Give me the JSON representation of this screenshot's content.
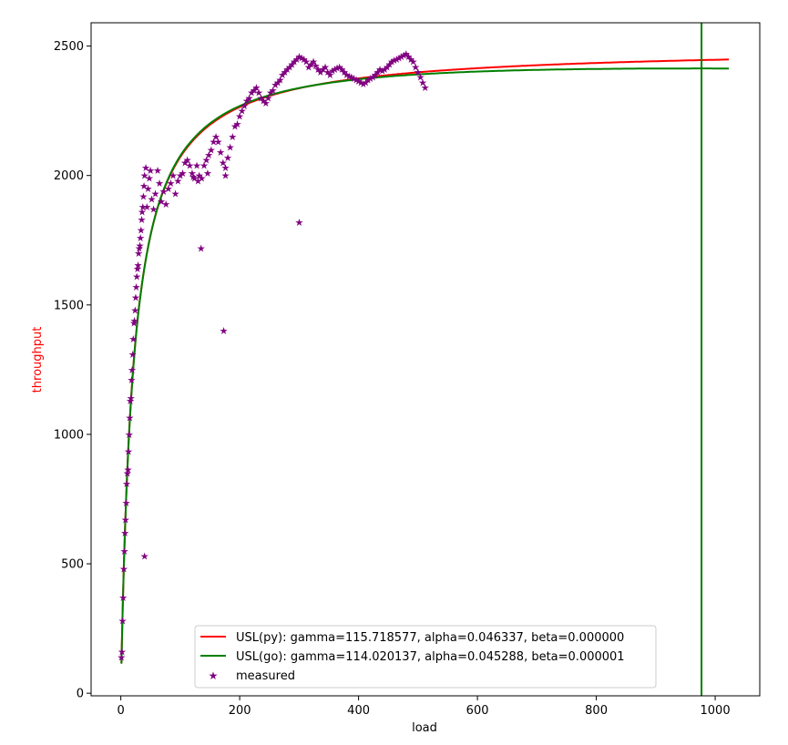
{
  "chart_data": {
    "type": "line",
    "xlabel": "load",
    "ylabel": "throughput",
    "xlim": [
      -50,
      1075
    ],
    "ylim": [
      -10,
      2590
    ],
    "xticks": [
      0,
      200,
      400,
      600,
      800,
      1000
    ],
    "yticks": [
      0,
      500,
      1000,
      1500,
      2000,
      2500
    ],
    "grid": false,
    "legend_position": "lower-center",
    "colors": {
      "ylabel": "#ff0000",
      "py": "#ff0000",
      "go": "#008000",
      "measured": "#800080"
    },
    "series": [
      {
        "name": "USL(py): gamma=115.718577, alpha=0.046337, beta=0.000000",
        "kind": "usl",
        "gamma": 115.718577,
        "alpha": 0.046337,
        "beta": 0.0,
        "x_range": [
          1,
          1024
        ]
      },
      {
        "name": "USL(go): gamma=114.020137, alpha=0.045288, beta=0.000001",
        "kind": "usl",
        "gamma": 114.020137,
        "alpha": 0.045288,
        "beta": 1e-06,
        "x_range": [
          1,
          1024
        ]
      },
      {
        "name": "measured",
        "kind": "scatter",
        "points": [
          [
            1,
            140
          ],
          [
            2,
            160
          ],
          [
            3,
            280
          ],
          [
            4,
            370
          ],
          [
            5,
            480
          ],
          [
            6,
            550
          ],
          [
            7,
            620
          ],
          [
            8,
            670
          ],
          [
            9,
            735
          ],
          [
            10,
            810
          ],
          [
            11,
            850
          ],
          [
            12,
            865
          ],
          [
            13,
            935
          ],
          [
            14,
            1000
          ],
          [
            15,
            1065
          ],
          [
            16,
            1130
          ],
          [
            17,
            1140
          ],
          [
            18,
            1210
          ],
          [
            19,
            1250
          ],
          [
            20,
            1310
          ],
          [
            21,
            1370
          ],
          [
            22,
            1430
          ],
          [
            23,
            1440
          ],
          [
            24,
            1480
          ],
          [
            25,
            1530
          ],
          [
            26,
            1570
          ],
          [
            27,
            1610
          ],
          [
            28,
            1640
          ],
          [
            29,
            1655
          ],
          [
            30,
            1700
          ],
          [
            31,
            1720
          ],
          [
            32,
            1730
          ],
          [
            33,
            1760
          ],
          [
            34,
            1790
          ],
          [
            35,
            1830
          ],
          [
            36,
            1860
          ],
          [
            37,
            1880
          ],
          [
            38,
            1920
          ],
          [
            39,
            1960
          ],
          [
            40,
            2000
          ],
          [
            42,
            2030
          ],
          [
            44,
            1880
          ],
          [
            46,
            1950
          ],
          [
            48,
            1990
          ],
          [
            50,
            2020
          ],
          [
            52,
            1910
          ],
          [
            55,
            1870
          ],
          [
            58,
            1930
          ],
          [
            62,
            2020
          ],
          [
            65,
            1970
          ],
          [
            68,
            1900
          ],
          [
            72,
            1940
          ],
          [
            76,
            1890
          ],
          [
            80,
            1950
          ],
          [
            84,
            1970
          ],
          [
            88,
            2000
          ],
          [
            92,
            1930
          ],
          [
            96,
            1980
          ],
          [
            100,
            2000
          ],
          [
            104,
            2010
          ],
          [
            108,
            2050
          ],
          [
            112,
            2060
          ],
          [
            116,
            2040
          ],
          [
            120,
            2010
          ],
          [
            124,
            1990
          ],
          [
            128,
            2040
          ],
          [
            132,
            2000
          ],
          [
            136,
            1990
          ],
          [
            140,
            2040
          ],
          [
            144,
            2060
          ],
          [
            148,
            2080
          ],
          [
            152,
            2100
          ],
          [
            156,
            2130
          ],
          [
            160,
            2150
          ],
          [
            164,
            2130
          ],
          [
            168,
            2090
          ],
          [
            172,
            2050
          ],
          [
            176,
            2030
          ],
          [
            180,
            2070
          ],
          [
            184,
            2110
          ],
          [
            188,
            2150
          ],
          [
            192,
            2190
          ],
          [
            196,
            2200
          ],
          [
            200,
            2230
          ],
          [
            204,
            2250
          ],
          [
            208,
            2270
          ],
          [
            212,
            2290
          ],
          [
            216,
            2300
          ],
          [
            220,
            2320
          ],
          [
            224,
            2330
          ],
          [
            228,
            2340
          ],
          [
            232,
            2320
          ],
          [
            236,
            2300
          ],
          [
            240,
            2290
          ],
          [
            244,
            2280
          ],
          [
            248,
            2300
          ],
          [
            252,
            2320
          ],
          [
            256,
            2330
          ],
          [
            260,
            2350
          ],
          [
            264,
            2360
          ],
          [
            268,
            2370
          ],
          [
            272,
            2390
          ],
          [
            276,
            2400
          ],
          [
            280,
            2410
          ],
          [
            284,
            2420
          ],
          [
            288,
            2430
          ],
          [
            292,
            2440
          ],
          [
            296,
            2450
          ],
          [
            300,
            2460
          ],
          [
            304,
            2455
          ],
          [
            308,
            2450
          ],
          [
            312,
            2440
          ],
          [
            316,
            2420
          ],
          [
            320,
            2430
          ],
          [
            324,
            2440
          ],
          [
            328,
            2425
          ],
          [
            332,
            2410
          ],
          [
            336,
            2400
          ],
          [
            340,
            2410
          ],
          [
            344,
            2420
          ],
          [
            348,
            2400
          ],
          [
            352,
            2390
          ],
          [
            356,
            2405
          ],
          [
            360,
            2410
          ],
          [
            364,
            2415
          ],
          [
            368,
            2420
          ],
          [
            372,
            2410
          ],
          [
            376,
            2400
          ],
          [
            380,
            2390
          ],
          [
            384,
            2385
          ],
          [
            388,
            2380
          ],
          [
            392,
            2375
          ],
          [
            396,
            2370
          ],
          [
            400,
            2365
          ],
          [
            404,
            2360
          ],
          [
            408,
            2355
          ],
          [
            412,
            2360
          ],
          [
            416,
            2370
          ],
          [
            420,
            2375
          ],
          [
            424,
            2380
          ],
          [
            428,
            2390
          ],
          [
            432,
            2400
          ],
          [
            436,
            2410
          ],
          [
            440,
            2405
          ],
          [
            444,
            2410
          ],
          [
            448,
            2420
          ],
          [
            452,
            2430
          ],
          [
            456,
            2440
          ],
          [
            460,
            2445
          ],
          [
            464,
            2450
          ],
          [
            468,
            2455
          ],
          [
            472,
            2460
          ],
          [
            476,
            2465
          ],
          [
            480,
            2470
          ],
          [
            484,
            2460
          ],
          [
            488,
            2450
          ],
          [
            492,
            2440
          ],
          [
            496,
            2420
          ],
          [
            500,
            2400
          ],
          [
            504,
            2380
          ],
          [
            508,
            2360
          ],
          [
            512,
            2340
          ],
          [
            40,
            530
          ],
          [
            135,
            1720
          ],
          [
            173,
            1400
          ],
          [
            300,
            1820
          ],
          [
            130,
            1980
          ],
          [
            122,
            1995
          ],
          [
            146,
            2010
          ],
          [
            176,
            2000
          ]
        ]
      }
    ],
    "vline": {
      "x": 977,
      "color": "#008000"
    }
  }
}
